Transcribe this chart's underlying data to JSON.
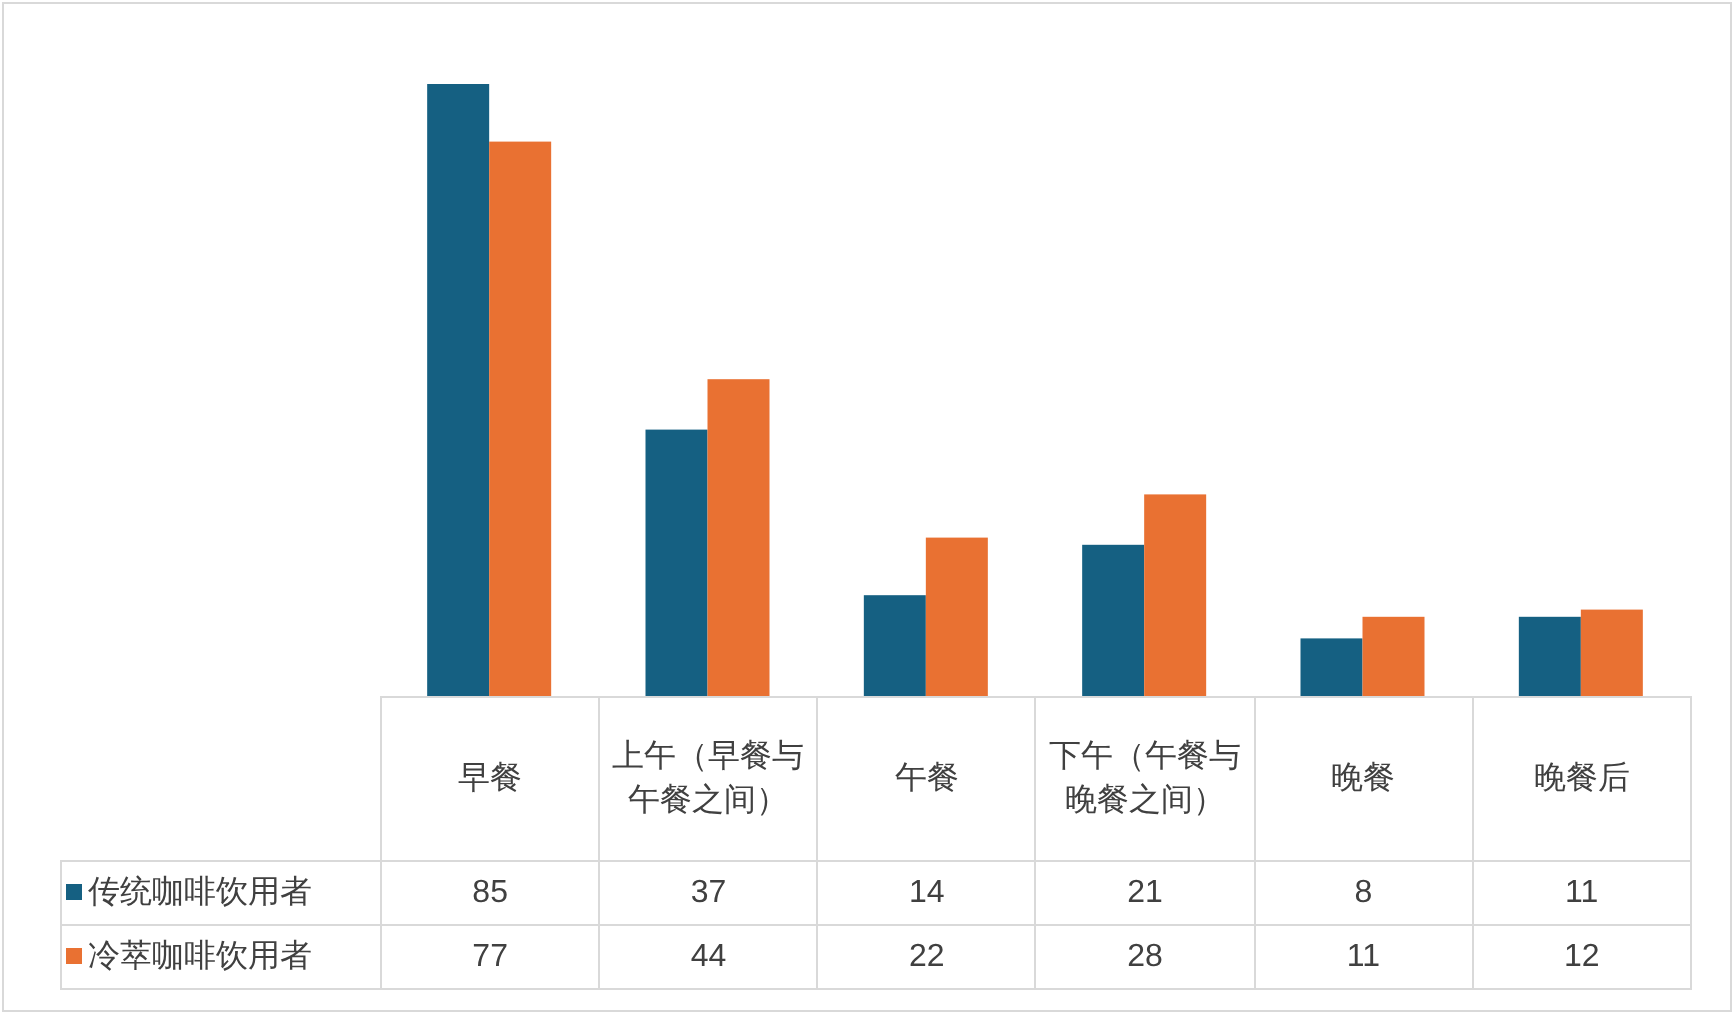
{
  "chart_data": {
    "type": "bar",
    "categories": [
      "早餐",
      "上午（早餐与午餐之间）",
      "午餐",
      "下午（午餐与晚餐之间）",
      "晚餐",
      "晚餐后"
    ],
    "series": [
      {
        "name": "传统咖啡饮用者",
        "color": "#156082",
        "values": [
          85,
          37,
          14,
          21,
          8,
          11
        ]
      },
      {
        "name": "冷萃咖啡饮用者",
        "color": "#e97132",
        "values": [
          77,
          44,
          22,
          28,
          11,
          12
        ]
      }
    ],
    "data_labels": true,
    "legend": "bottom"
  }
}
